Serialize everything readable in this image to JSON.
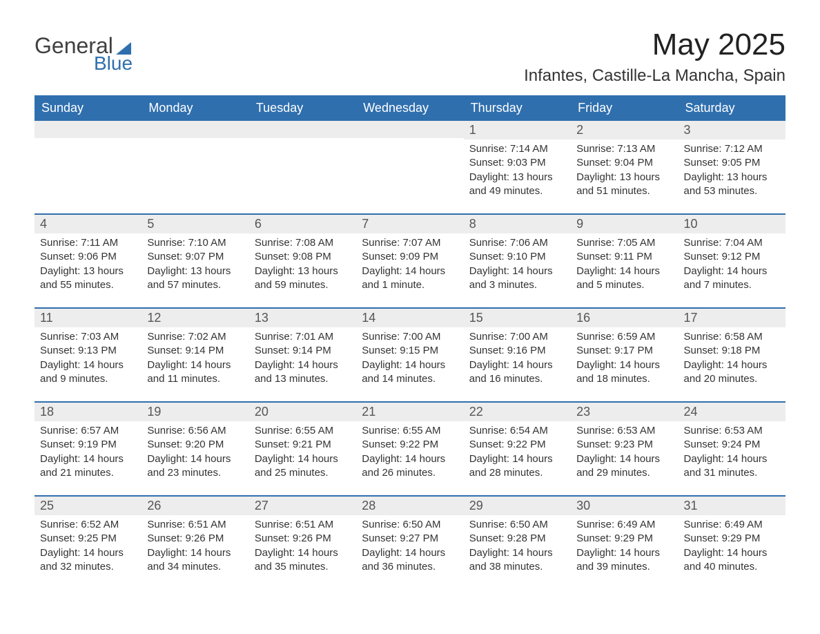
{
  "logo": {
    "word1": "General",
    "word2": "Blue"
  },
  "title": "May 2025",
  "location": "Infantes, Castille-La Mancha, Spain",
  "colors": {
    "header_bg": "#2f6fae",
    "header_text": "#ffffff",
    "daynum_bg": "#ededed",
    "row_border": "#2f6fae",
    "page_bg": "#ffffff",
    "body_text": "#333333"
  },
  "typography": {
    "title_fontsize": 44,
    "location_fontsize": 24,
    "weekday_fontsize": 18,
    "daynum_fontsize": 18,
    "body_fontsize": 15,
    "font_family": "Arial"
  },
  "layout": {
    "columns": 7,
    "rows": 5,
    "first_weekday_index": 4
  },
  "weekdays": [
    "Sunday",
    "Monday",
    "Tuesday",
    "Wednesday",
    "Thursday",
    "Friday",
    "Saturday"
  ],
  "days": [
    {
      "n": 1,
      "sunrise": "7:14 AM",
      "sunset": "9:03 PM",
      "daylight": "13 hours and 49 minutes."
    },
    {
      "n": 2,
      "sunrise": "7:13 AM",
      "sunset": "9:04 PM",
      "daylight": "13 hours and 51 minutes."
    },
    {
      "n": 3,
      "sunrise": "7:12 AM",
      "sunset": "9:05 PM",
      "daylight": "13 hours and 53 minutes."
    },
    {
      "n": 4,
      "sunrise": "7:11 AM",
      "sunset": "9:06 PM",
      "daylight": "13 hours and 55 minutes."
    },
    {
      "n": 5,
      "sunrise": "7:10 AM",
      "sunset": "9:07 PM",
      "daylight": "13 hours and 57 minutes."
    },
    {
      "n": 6,
      "sunrise": "7:08 AM",
      "sunset": "9:08 PM",
      "daylight": "13 hours and 59 minutes."
    },
    {
      "n": 7,
      "sunrise": "7:07 AM",
      "sunset": "9:09 PM",
      "daylight": "14 hours and 1 minute."
    },
    {
      "n": 8,
      "sunrise": "7:06 AM",
      "sunset": "9:10 PM",
      "daylight": "14 hours and 3 minutes."
    },
    {
      "n": 9,
      "sunrise": "7:05 AM",
      "sunset": "9:11 PM",
      "daylight": "14 hours and 5 minutes."
    },
    {
      "n": 10,
      "sunrise": "7:04 AM",
      "sunset": "9:12 PM",
      "daylight": "14 hours and 7 minutes."
    },
    {
      "n": 11,
      "sunrise": "7:03 AM",
      "sunset": "9:13 PM",
      "daylight": "14 hours and 9 minutes."
    },
    {
      "n": 12,
      "sunrise": "7:02 AM",
      "sunset": "9:14 PM",
      "daylight": "14 hours and 11 minutes."
    },
    {
      "n": 13,
      "sunrise": "7:01 AM",
      "sunset": "9:14 PM",
      "daylight": "14 hours and 13 minutes."
    },
    {
      "n": 14,
      "sunrise": "7:00 AM",
      "sunset": "9:15 PM",
      "daylight": "14 hours and 14 minutes."
    },
    {
      "n": 15,
      "sunrise": "7:00 AM",
      "sunset": "9:16 PM",
      "daylight": "14 hours and 16 minutes."
    },
    {
      "n": 16,
      "sunrise": "6:59 AM",
      "sunset": "9:17 PM",
      "daylight": "14 hours and 18 minutes."
    },
    {
      "n": 17,
      "sunrise": "6:58 AM",
      "sunset": "9:18 PM",
      "daylight": "14 hours and 20 minutes."
    },
    {
      "n": 18,
      "sunrise": "6:57 AM",
      "sunset": "9:19 PM",
      "daylight": "14 hours and 21 minutes."
    },
    {
      "n": 19,
      "sunrise": "6:56 AM",
      "sunset": "9:20 PM",
      "daylight": "14 hours and 23 minutes."
    },
    {
      "n": 20,
      "sunrise": "6:55 AM",
      "sunset": "9:21 PM",
      "daylight": "14 hours and 25 minutes."
    },
    {
      "n": 21,
      "sunrise": "6:55 AM",
      "sunset": "9:22 PM",
      "daylight": "14 hours and 26 minutes."
    },
    {
      "n": 22,
      "sunrise": "6:54 AM",
      "sunset": "9:22 PM",
      "daylight": "14 hours and 28 minutes."
    },
    {
      "n": 23,
      "sunrise": "6:53 AM",
      "sunset": "9:23 PM",
      "daylight": "14 hours and 29 minutes."
    },
    {
      "n": 24,
      "sunrise": "6:53 AM",
      "sunset": "9:24 PM",
      "daylight": "14 hours and 31 minutes."
    },
    {
      "n": 25,
      "sunrise": "6:52 AM",
      "sunset": "9:25 PM",
      "daylight": "14 hours and 32 minutes."
    },
    {
      "n": 26,
      "sunrise": "6:51 AM",
      "sunset": "9:26 PM",
      "daylight": "14 hours and 34 minutes."
    },
    {
      "n": 27,
      "sunrise": "6:51 AM",
      "sunset": "9:26 PM",
      "daylight": "14 hours and 35 minutes."
    },
    {
      "n": 28,
      "sunrise": "6:50 AM",
      "sunset": "9:27 PM",
      "daylight": "14 hours and 36 minutes."
    },
    {
      "n": 29,
      "sunrise": "6:50 AM",
      "sunset": "9:28 PM",
      "daylight": "14 hours and 38 minutes."
    },
    {
      "n": 30,
      "sunrise": "6:49 AM",
      "sunset": "9:29 PM",
      "daylight": "14 hours and 39 minutes."
    },
    {
      "n": 31,
      "sunrise": "6:49 AM",
      "sunset": "9:29 PM",
      "daylight": "14 hours and 40 minutes."
    }
  ],
  "labels": {
    "sunrise": "Sunrise: ",
    "sunset": "Sunset: ",
    "daylight": "Daylight: "
  }
}
